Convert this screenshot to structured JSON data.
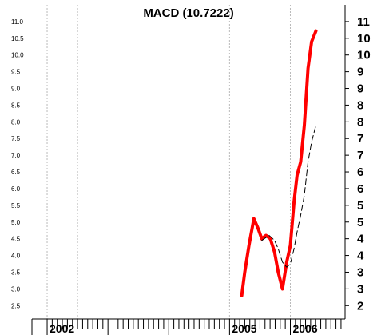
{
  "chart_data": {
    "type": "line",
    "title": "MACD (10.7222)",
    "left_ticks": [
      "11.0",
      "10.5",
      "10.0",
      "9.5",
      "9.0",
      "8.5",
      "8.0",
      "7.5",
      "7.0",
      "6.5",
      "6.0",
      "5.5",
      "5.0",
      "4.5",
      "4.0",
      "3.5",
      "3.0",
      "2.5"
    ],
    "right_ticks": [
      "11",
      "10",
      "10",
      "9",
      "9",
      "8",
      "8",
      "7",
      "7",
      "6",
      "6",
      "5",
      "5",
      "4",
      "4",
      "3",
      "3",
      "2"
    ],
    "tick_values": [
      11.0,
      10.5,
      10.0,
      9.5,
      9.0,
      8.5,
      8.0,
      7.5,
      7.0,
      6.5,
      6.0,
      5.5,
      5.0,
      4.5,
      4.0,
      3.5,
      3.0,
      2.5
    ],
    "ylim": [
      2.1,
      11.5
    ],
    "x_labels": [
      {
        "label": "2002",
        "x": 2002.0
      },
      {
        "label": "2005",
        "x": 2005.0
      },
      {
        "label": "2006",
        "x": 2006.0
      }
    ],
    "xlim": [
      2001.75,
      2006.9
    ],
    "series": [
      {
        "style": "solid",
        "color": "#ff0000",
        "x": [
          2005.2,
          2005.25,
          2005.32,
          2005.4,
          2005.47,
          2005.53,
          2005.6,
          2005.67,
          2005.74,
          2005.8,
          2005.87,
          2005.94,
          2006.0,
          2006.06,
          2006.11,
          2006.17,
          2006.23,
          2006.29,
          2006.35,
          2006.42
        ],
        "values": [
          2.8,
          3.5,
          4.3,
          5.1,
          4.8,
          4.5,
          4.6,
          4.5,
          4.1,
          3.5,
          3.0,
          3.8,
          4.3,
          5.6,
          6.4,
          6.8,
          7.9,
          9.6,
          10.4,
          10.72
        ]
      },
      {
        "style": "dashed",
        "color": "#000000",
        "x": [
          2005.53,
          2005.65,
          2005.74,
          2005.8,
          2005.87,
          2005.94,
          2006.0,
          2006.06,
          2006.11,
          2006.17,
          2006.23,
          2006.29,
          2006.35,
          2006.42
        ],
        "values": [
          4.45,
          4.6,
          4.45,
          4.2,
          3.8,
          3.65,
          3.75,
          4.2,
          4.7,
          5.2,
          5.8,
          6.8,
          7.4,
          7.9
        ]
      }
    ],
    "grid": true,
    "vgrid_x": [
      2002.0,
      2002.5,
      2005.0,
      2006.0
    ],
    "legend": "none"
  }
}
